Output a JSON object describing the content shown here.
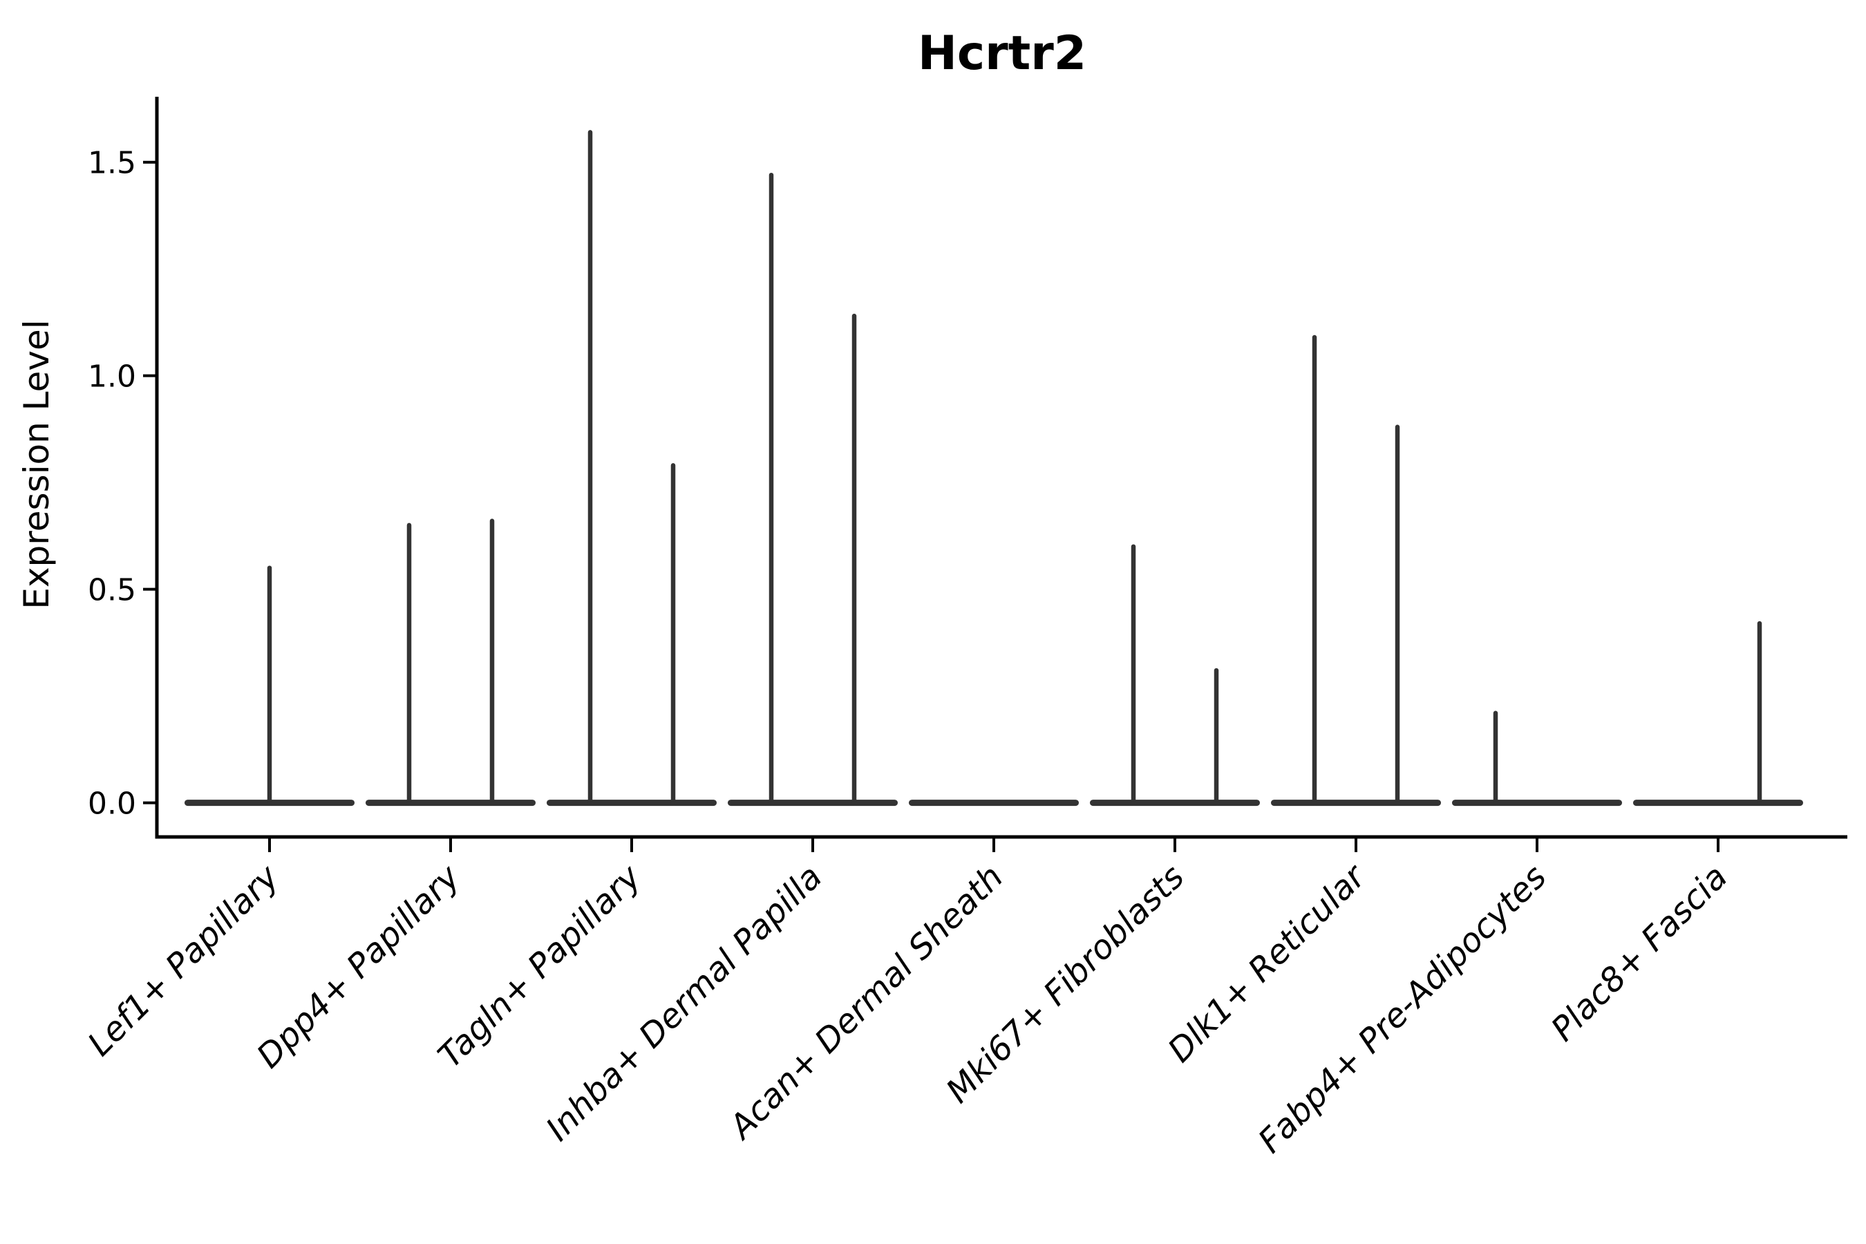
{
  "chart_data": {
    "type": "violin",
    "title": "Hcrtr2",
    "xlabel": "",
    "ylabel": "Expression Level",
    "ylim": [
      -0.08,
      1.65
    ],
    "grid": false,
    "legend": "none",
    "yticks": [
      {
        "label": "0.0",
        "value": 0.0
      },
      {
        "label": "0.5",
        "value": 0.5
      },
      {
        "label": "1.0",
        "value": 1.0
      },
      {
        "label": "1.5",
        "value": 1.5
      }
    ],
    "categories": [
      "Lef1+ Papillary",
      "Dpp4+ Papillary",
      "Tagln+ Papillary",
      "Inhba+ Dermal Papilla",
      "Acan+ Dermal Sheath",
      "Mki67+ Fibroblasts",
      "Dlk1+ Reticular",
      "Fabp4+ Pre-Adipocytes",
      "Plac8+ Fascia"
    ],
    "violins": [
      {
        "category": "Lef1+ Papillary",
        "baseline_value": 0.0,
        "spikes": [
          {
            "pos": "center",
            "value": 0.55
          }
        ]
      },
      {
        "category": "Dpp4+ Papillary",
        "baseline_value": 0.0,
        "spikes": [
          {
            "pos": "left",
            "value": 0.65
          },
          {
            "pos": "right",
            "value": 0.66
          }
        ]
      },
      {
        "category": "Tagln+ Papillary",
        "baseline_value": 0.0,
        "spikes": [
          {
            "pos": "left",
            "value": 1.57
          },
          {
            "pos": "right",
            "value": 0.79
          }
        ]
      },
      {
        "category": "Inhba+ Dermal Papilla",
        "baseline_value": 0.0,
        "spikes": [
          {
            "pos": "left",
            "value": 1.47
          },
          {
            "pos": "right",
            "value": 1.14
          }
        ]
      },
      {
        "category": "Acan+ Dermal Sheath",
        "baseline_value": 0.0,
        "spikes": []
      },
      {
        "category": "Mki67+ Fibroblasts",
        "baseline_value": 0.0,
        "spikes": [
          {
            "pos": "left",
            "value": 0.6
          },
          {
            "pos": "right",
            "value": 0.31
          }
        ]
      },
      {
        "category": "Dlk1+ Reticular",
        "baseline_value": 0.0,
        "spikes": [
          {
            "pos": "left",
            "value": 1.09
          },
          {
            "pos": "right",
            "value": 0.88
          }
        ]
      },
      {
        "category": "Fabp4+ Pre-Adipocytes",
        "baseline_value": 0.0,
        "spikes": [
          {
            "pos": "left",
            "value": 0.21
          }
        ]
      },
      {
        "category": "Plac8+ Fascia",
        "baseline_value": 0.0,
        "spikes": [
          {
            "pos": "right",
            "value": 0.42
          }
        ]
      }
    ],
    "colors": {
      "ink": "#000000",
      "violin": "#333333"
    }
  }
}
